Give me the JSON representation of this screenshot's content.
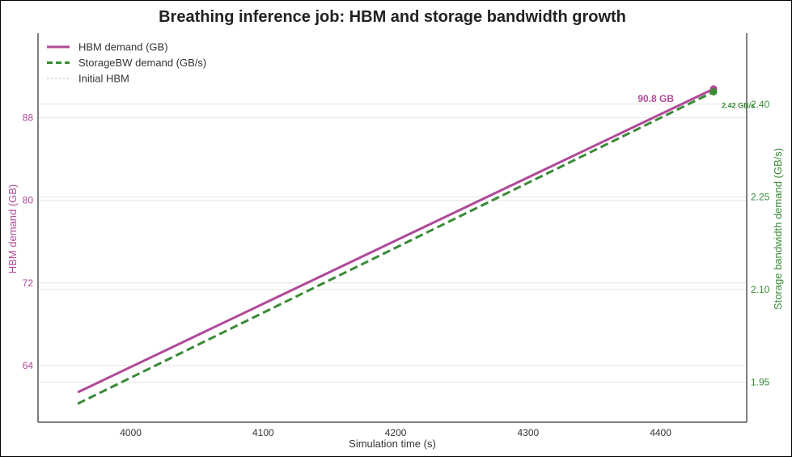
{
  "chart_data": {
    "type": "line",
    "title": "Breathing inference job: HBM and storage bandwidth growth",
    "xlabel": "Simulation time (s)",
    "ylabel_left": "HBM demand (GB)",
    "ylabel_right": "Storage bandwidth demand (GB/s)",
    "xlim": [
      3930,
      4465
    ],
    "ylim_left": [
      58.5,
      96.2
    ],
    "ylim_right": [
      1.885,
      2.515
    ],
    "x_ticks": [
      4000,
      4100,
      4200,
      4300,
      4400
    ],
    "y_left_ticks": [
      64,
      72,
      80,
      88
    ],
    "y_right_ticks": [
      "1.95",
      "2.10",
      "2.25",
      "2.40"
    ],
    "grid": true,
    "legend_position": "top-left",
    "series": [
      {
        "name": "HBM demand (GB)",
        "axis": "left",
        "style": "solid",
        "color": "#b04a99",
        "x": [
          3960,
          4440
        ],
        "y": [
          61.4,
          90.8
        ]
      },
      {
        "name": "StorageBW demand (GB/s)",
        "axis": "right",
        "style": "dashed",
        "color": "#3a8a38",
        "x": [
          3960,
          4440
        ],
        "y": [
          1.915,
          2.42
        ]
      },
      {
        "name": "Initial HBM",
        "axis": "left",
        "style": "dotted",
        "color": "#d8a8cc",
        "x": [
          3960,
          4440
        ],
        "y": [
          61.4,
          61.4
        ]
      }
    ],
    "annotations": [
      {
        "text": "90.8 GB",
        "series": 0,
        "x": 4440,
        "y": 90.8
      },
      {
        "text": "2.42 GB/s",
        "series": 1,
        "x": 4440,
        "y": 2.42
      }
    ],
    "colors": {
      "hbm": "#b04a99",
      "storage": "#3a8a38",
      "initial": "#d8a8cc",
      "axis": "#555555",
      "grid": "#e6e6e6"
    }
  }
}
